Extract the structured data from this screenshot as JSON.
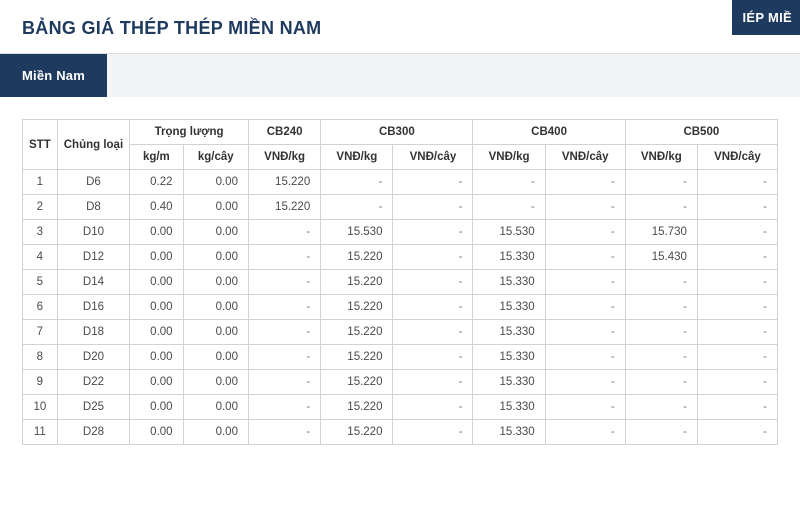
{
  "colors": {
    "brand": "#1e3a5f",
    "border": "#d0d3d6",
    "bg_tabs": "#f3f4f6",
    "text_title": "#1e3a5f",
    "text_body": "#4a4a4a"
  },
  "header": {
    "title": "BẢNG GIÁ THÉP THÉP MIỀN NAM",
    "corner_fragment": "IÉP MIỀ"
  },
  "tabs": {
    "active": "Miền Nam"
  },
  "table": {
    "header": {
      "stt": "STT",
      "type": "Chủng loại",
      "weight_group": "Trọng lượng",
      "weight_kgm": "kg/m",
      "weight_kgcay": "kg/cây",
      "cb240": "CB240",
      "cb300": "CB300",
      "cb400": "CB400",
      "cb500": "CB500",
      "vnd_kg": "VNĐ/kg",
      "vnd_cay": "VNĐ/cây"
    },
    "rows": [
      {
        "stt": "1",
        "type": "D6",
        "kgm": "0.22",
        "kgcay": "0.00",
        "cb240_kg": "15.220",
        "cb300_kg": "-",
        "cb300_cay": "-",
        "cb400_kg": "-",
        "cb400_cay": "-",
        "cb500_kg": "-",
        "cb500_cay": "-"
      },
      {
        "stt": "2",
        "type": "D8",
        "kgm": "0.40",
        "kgcay": "0.00",
        "cb240_kg": "15.220",
        "cb300_kg": "-",
        "cb300_cay": "-",
        "cb400_kg": "-",
        "cb400_cay": "-",
        "cb500_kg": "-",
        "cb500_cay": "-"
      },
      {
        "stt": "3",
        "type": "D10",
        "kgm": "0.00",
        "kgcay": "0.00",
        "cb240_kg": "-",
        "cb300_kg": "15.530",
        "cb300_cay": "-",
        "cb400_kg": "15.530",
        "cb400_cay": "-",
        "cb500_kg": "15.730",
        "cb500_cay": "-"
      },
      {
        "stt": "4",
        "type": "D12",
        "kgm": "0.00",
        "kgcay": "0.00",
        "cb240_kg": "-",
        "cb300_kg": "15.220",
        "cb300_cay": "-",
        "cb400_kg": "15.330",
        "cb400_cay": "-",
        "cb500_kg": "15.430",
        "cb500_cay": "-"
      },
      {
        "stt": "5",
        "type": "D14",
        "kgm": "0.00",
        "kgcay": "0.00",
        "cb240_kg": "-",
        "cb300_kg": "15.220",
        "cb300_cay": "-",
        "cb400_kg": "15.330",
        "cb400_cay": "-",
        "cb500_kg": "-",
        "cb500_cay": "-"
      },
      {
        "stt": "6",
        "type": "D16",
        "kgm": "0.00",
        "kgcay": "0.00",
        "cb240_kg": "-",
        "cb300_kg": "15.220",
        "cb300_cay": "-",
        "cb400_kg": "15.330",
        "cb400_cay": "-",
        "cb500_kg": "-",
        "cb500_cay": "-"
      },
      {
        "stt": "7",
        "type": "D18",
        "kgm": "0.00",
        "kgcay": "0.00",
        "cb240_kg": "-",
        "cb300_kg": "15.220",
        "cb300_cay": "-",
        "cb400_kg": "15.330",
        "cb400_cay": "-",
        "cb500_kg": "-",
        "cb500_cay": "-"
      },
      {
        "stt": "8",
        "type": "D20",
        "kgm": "0.00",
        "kgcay": "0.00",
        "cb240_kg": "-",
        "cb300_kg": "15.220",
        "cb300_cay": "-",
        "cb400_kg": "15.330",
        "cb400_cay": "-",
        "cb500_kg": "-",
        "cb500_cay": "-"
      },
      {
        "stt": "9",
        "type": "D22",
        "kgm": "0.00",
        "kgcay": "0.00",
        "cb240_kg": "-",
        "cb300_kg": "15.220",
        "cb300_cay": "-",
        "cb400_kg": "15.330",
        "cb400_cay": "-",
        "cb500_kg": "-",
        "cb500_cay": "-"
      },
      {
        "stt": "10",
        "type": "D25",
        "kgm": "0.00",
        "kgcay": "0.00",
        "cb240_kg": "-",
        "cb300_kg": "15.220",
        "cb300_cay": "-",
        "cb400_kg": "15.330",
        "cb400_cay": "-",
        "cb500_kg": "-",
        "cb500_cay": "-"
      },
      {
        "stt": "11",
        "type": "D28",
        "kgm": "0.00",
        "kgcay": "0.00",
        "cb240_kg": "-",
        "cb300_kg": "15.220",
        "cb300_cay": "-",
        "cb400_kg": "15.330",
        "cb400_cay": "-",
        "cb500_kg": "-",
        "cb500_cay": "-"
      }
    ]
  }
}
